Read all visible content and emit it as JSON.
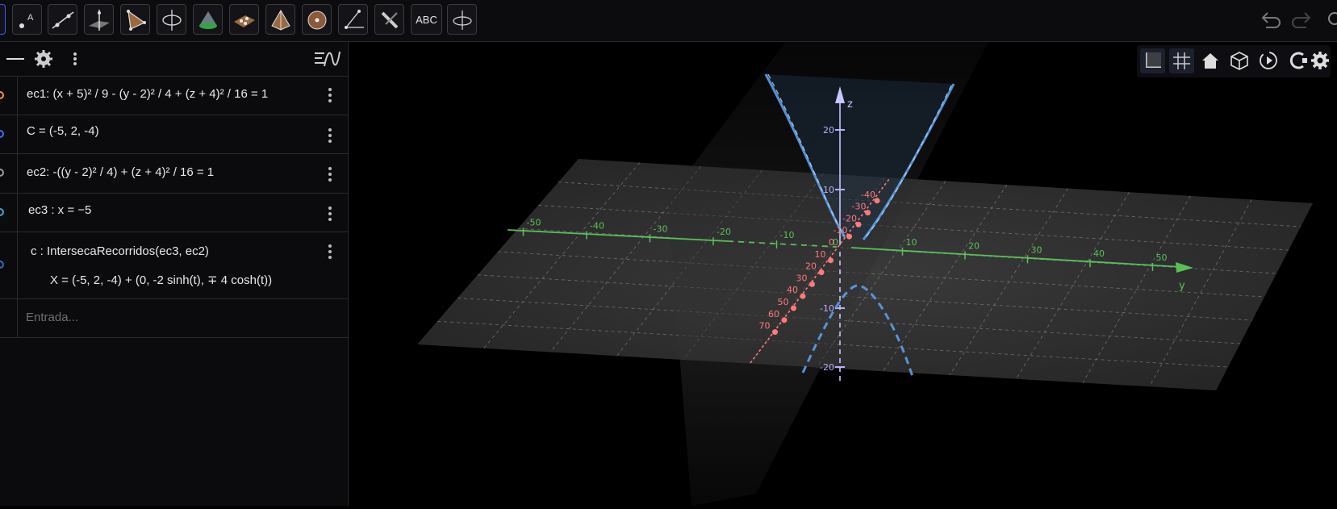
{
  "toolbar": {
    "tools": [
      {
        "name": "move-tool",
        "icon": "cursor-icon"
      },
      {
        "name": "point-tool",
        "icon": "point-a-icon"
      },
      {
        "name": "line-tool",
        "icon": "line-through-points-icon"
      },
      {
        "name": "perpendicular-line-tool",
        "icon": "perpendicular-plane-icon"
      },
      {
        "name": "polygon-tool",
        "icon": "triangle-icon"
      },
      {
        "name": "circle-axis-tool",
        "icon": "circle-axis-icon"
      },
      {
        "name": "plane-tool",
        "icon": "plane-icon"
      },
      {
        "name": "intersect-surfaces-tool",
        "icon": "intersect-surfaces-icon"
      },
      {
        "name": "pyramid-tool",
        "icon": "pyramid-icon"
      },
      {
        "name": "sphere-tool",
        "icon": "sphere-icon"
      },
      {
        "name": "angle-tool",
        "icon": "angle-icon"
      },
      {
        "name": "reflect-tool",
        "icon": "reflect-icon"
      },
      {
        "name": "text-tool",
        "label": "ABC"
      },
      {
        "name": "rotate-view-tool",
        "icon": "rotate-view-icon"
      }
    ]
  },
  "algebra": {
    "rows": [
      {
        "text": "ec1: (x + 5)² / 9 - (y - 2)² / 4 + (z + 4)² / 16 = 1",
        "color": "#ff8a50"
      },
      {
        "text": "C = (-5, 2, -4)",
        "color": "#3d6dff"
      },
      {
        "text": "ec2: -((y - 2)² / 4) + (z + 4)² / 16 = 1",
        "color": "#9a9aa0"
      },
      {
        "text": "ec3 : x = −5",
        "color": "#3aa7c4"
      },
      {
        "text": "c : IntersecaRecorridos(ec3, ec2)",
        "text2": "X = (-5, 2, -4) + (0, -2 sinh(t), ∓ 4 cosh(t))",
        "color": "#2f68c8"
      }
    ],
    "input_placeholder": "Entrada..."
  },
  "graphics": {
    "axis_labels": {
      "z": "z",
      "y": "y"
    },
    "z_ticks": [
      "20",
      "10",
      "-10",
      "-20"
    ],
    "x_ticks": [
      "-40",
      "-30",
      "-20",
      "-10",
      "10",
      "20",
      "30",
      "40",
      "50",
      "60",
      "70"
    ],
    "x_origin": "0",
    "y_ticks": [
      "-50",
      "-40",
      "-30",
      "-20",
      "-10",
      "10",
      "20",
      "30",
      "40",
      "50"
    ],
    "y_origin": "0",
    "colors": {
      "x_axis": "#ff7a7a",
      "y_axis": "#58c058",
      "z_axis": "#b7b1ff",
      "curve": "#5aa0e8"
    }
  }
}
